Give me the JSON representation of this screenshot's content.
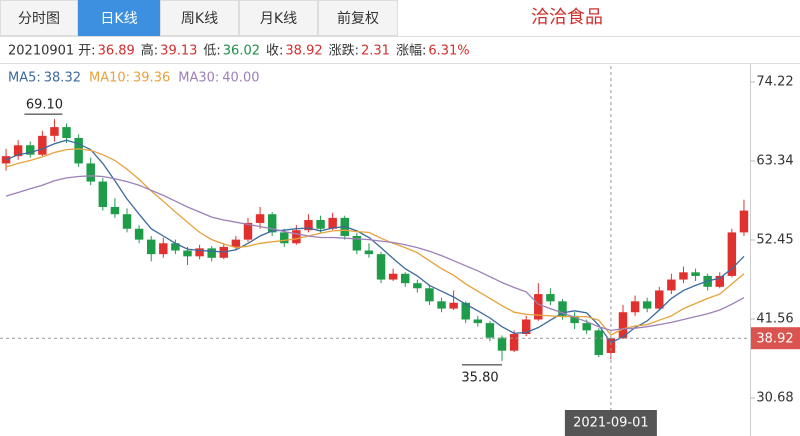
{
  "tabs": [
    "分时图",
    "日K线",
    "周K线",
    "月K线",
    "前复权"
  ],
  "active_tab": 1,
  "stock_name": "洽洽食品",
  "quote": {
    "date": "20210901",
    "items": [
      {
        "label": "开:",
        "value": 36.89,
        "color": "#d0302d"
      },
      {
        "label": "高:",
        "value": 39.13,
        "color": "#d0302d"
      },
      {
        "label": "低:",
        "value": 36.02,
        "color": "#1f8f4a"
      },
      {
        "label": "收:",
        "value": 38.92,
        "color": "#d0302d"
      },
      {
        "label": "涨跌:",
        "value": 2.31,
        "color": "#d0302d"
      },
      {
        "label": "涨幅:",
        "value": 6.31,
        "value_label": "6.31%",
        "color": "#d0302d"
      }
    ]
  },
  "chart_data": {
    "type": "candlestick",
    "up_color": "#e0312f",
    "down_color": "#1e9c4a",
    "categories": [
      null,
      null,
      null,
      null,
      null,
      null,
      null,
      null,
      null,
      null,
      null,
      null,
      null,
      null,
      null,
      null,
      null,
      null,
      null,
      null,
      null,
      null,
      null,
      null,
      null,
      null,
      null,
      null,
      null,
      null,
      null,
      null,
      null,
      null,
      null,
      null,
      null,
      null,
      null,
      null,
      null,
      null,
      null,
      null,
      null,
      null,
      null,
      null,
      null,
      null,
      "2021-09-01",
      null,
      null,
      null,
      null,
      null,
      null,
      null,
      null,
      null,
      null,
      null
    ],
    "ohlc": [
      [
        63.0,
        65.0,
        62.0,
        64.0
      ],
      [
        64.0,
        66.2,
        63.5,
        65.5
      ],
      [
        65.5,
        66.0,
        63.8,
        64.2
      ],
      [
        64.2,
        67.5,
        64.0,
        66.8
      ],
      [
        66.8,
        69.1,
        66.0,
        68.0
      ],
      [
        68.0,
        68.5,
        65.8,
        66.5
      ],
      [
        66.5,
        67.0,
        62.5,
        63.0
      ],
      [
        63.0,
        63.8,
        60.0,
        60.5
      ],
      [
        60.5,
        61.0,
        56.5,
        57.0
      ],
      [
        57.0,
        58.2,
        55.5,
        56.0
      ],
      [
        56.0,
        56.8,
        53.5,
        54.0
      ],
      [
        54.0,
        54.5,
        52.0,
        52.5
      ],
      [
        52.5,
        53.0,
        49.5,
        50.5
      ],
      [
        50.5,
        52.8,
        50.0,
        52.0
      ],
      [
        52.0,
        52.5,
        50.5,
        51.0
      ],
      [
        51.0,
        51.5,
        49.0,
        50.2
      ],
      [
        50.2,
        51.8,
        49.8,
        51.3
      ],
      [
        51.3,
        51.6,
        49.5,
        50.0
      ],
      [
        50.0,
        52.0,
        49.8,
        51.5
      ],
      [
        51.5,
        53.0,
        51.0,
        52.5
      ],
      [
        52.5,
        55.5,
        52.2,
        54.8
      ],
      [
        54.8,
        57.0,
        54.0,
        56.0
      ],
      [
        56.0,
        56.3,
        53.0,
        53.5
      ],
      [
        53.5,
        54.0,
        51.5,
        52.0
      ],
      [
        52.0,
        54.5,
        51.8,
        53.8
      ],
      [
        53.8,
        56.0,
        53.5,
        55.2
      ],
      [
        55.2,
        55.8,
        53.5,
        54.0
      ],
      [
        54.0,
        56.2,
        53.8,
        55.5
      ],
      [
        55.5,
        55.8,
        52.5,
        53.0
      ],
      [
        53.0,
        53.4,
        50.5,
        51.0
      ],
      [
        51.0,
        52.0,
        50.0,
        50.5
      ],
      [
        50.5,
        50.8,
        46.5,
        47.0
      ],
      [
        47.0,
        48.5,
        46.8,
        47.8
      ],
      [
        47.8,
        48.0,
        46.0,
        46.5
      ],
      [
        46.5,
        47.0,
        45.2,
        45.8
      ],
      [
        45.8,
        46.2,
        43.5,
        44.0
      ],
      [
        44.0,
        44.5,
        42.5,
        43.0
      ],
      [
        43.0,
        45.5,
        42.8,
        43.8
      ],
      [
        43.8,
        44.0,
        41.0,
        41.5
      ],
      [
        41.5,
        42.0,
        40.5,
        41.0
      ],
      [
        41.0,
        41.3,
        38.5,
        39.0
      ],
      [
        39.0,
        39.3,
        35.8,
        37.2
      ],
      [
        37.2,
        40.0,
        37.0,
        39.5
      ],
      [
        39.5,
        42.0,
        39.2,
        41.5
      ],
      [
        41.5,
        46.5,
        41.3,
        45.0
      ],
      [
        45.0,
        45.8,
        43.5,
        44.0
      ],
      [
        44.0,
        44.3,
        41.5,
        42.0
      ],
      [
        42.0,
        42.5,
        40.2,
        41.0
      ],
      [
        41.0,
        41.5,
        39.5,
        40.0
      ],
      [
        40.0,
        40.3,
        36.3,
        36.61
      ],
      [
        36.89,
        39.13,
        36.02,
        38.92
      ],
      [
        38.92,
        43.5,
        38.8,
        42.5
      ],
      [
        42.5,
        44.8,
        42.0,
        44.0
      ],
      [
        44.0,
        44.5,
        42.5,
        43.0
      ],
      [
        43.0,
        46.0,
        42.8,
        45.5
      ],
      [
        45.5,
        47.8,
        45.0,
        47.0
      ],
      [
        47.0,
        48.8,
        46.5,
        48.0
      ],
      [
        48.0,
        48.5,
        46.8,
        47.5
      ],
      [
        47.5,
        47.8,
        45.5,
        46.0
      ],
      [
        46.0,
        48.0,
        45.8,
        47.5
      ],
      [
        47.5,
        54.0,
        47.3,
        53.5
      ],
      [
        53.5,
        58.0,
        53.0,
        56.5
      ]
    ],
    "series": [
      {
        "name": "MA5:",
        "color": "#3d6a9e",
        "cursor_value": 38.32,
        "values": [
          63.5,
          64.2,
          64.5,
          65,
          65.7,
          66.2,
          65.7,
          64.9,
          63,
          60.6,
          58.1,
          56,
          54,
          53,
          52,
          51.2,
          51,
          50.9,
          50.8,
          51.1,
          52,
          53,
          53.7,
          53.8,
          54,
          54.1,
          53.7,
          54.1,
          54.3,
          53.7,
          52.8,
          51.4,
          49.9,
          48.5,
          47.5,
          46.2,
          45.4,
          44.6,
          43.6,
          42.7,
          41.7,
          40.5,
          39.6,
          39.7,
          40.4,
          41.4,
          42.4,
          42.7,
          42.4,
          40.7,
          38.32,
          39.1,
          40.4,
          41.3,
          42.8,
          44.4,
          45.5,
          46.2,
          46.8,
          47.2,
          48.5,
          50.2
        ]
      },
      {
        "name": "MA10:",
        "color": "#e6a23c",
        "cursor_value": 39.36,
        "values": [
          62.5,
          63,
          63.4,
          63.9,
          64.5,
          64.9,
          65,
          64.8,
          64.2,
          63.4,
          62.2,
          60.8,
          59.2,
          57.8,
          56.3,
          54.9,
          53.5,
          52.5,
          51.9,
          51.4,
          51.6,
          52,
          52.2,
          52.4,
          52.6,
          53,
          53.4,
          53.7,
          53.8,
          53.6,
          53.5,
          52.7,
          52,
          51.4,
          50.7,
          49.6,
          48.5,
          47.6,
          46.4,
          45.4,
          44.4,
          43.4,
          42.5,
          42.2,
          42.1,
          42,
          41.9,
          41.9,
          41.9,
          41.4,
          39.36,
          40.2,
          40.6,
          40.8,
          41.4,
          42,
          43,
          43.7,
          44.4,
          45,
          46.4,
          47.8
        ]
      },
      {
        "name": "MA30:",
        "color": "#9d80b8",
        "cursor_value": {
          "value": 40,
          "label": "40.00"
        },
        "values": [
          58.5,
          59,
          59.5,
          60,
          60.6,
          61,
          61.2,
          61.3,
          61.2,
          60.9,
          60.5,
          60,
          59.3,
          58.6,
          57.8,
          57,
          56.3,
          55.6,
          55.2,
          54.9,
          54.6,
          54.3,
          54,
          53.6,
          53.3,
          53,
          52.8,
          52.8,
          52.7,
          52.6,
          52.5,
          52.3,
          52.1,
          51.8,
          51.4,
          50.9,
          50.3,
          49.6,
          48.9,
          48.2,
          47.4,
          46.6,
          45.9,
          45.3,
          43.6,
          43,
          42.4,
          41.8,
          41.2,
          40.5,
          40,
          40.2,
          40.3,
          40.5,
          40.8,
          41.1,
          41.5,
          41.9,
          42.3,
          42.8,
          43.6,
          44.5
        ]
      }
    ],
    "cursor_price": 38.92,
    "annotations": [
      {
        "value": 69.1,
        "label": "69.10",
        "kind": "high"
      },
      {
        "value": 35.8,
        "label": "35.80",
        "kind": "low"
      }
    ],
    "ylim": [
      29.03,
      76.42
    ],
    "yticks": [
      74.22,
      63.34,
      52.45,
      41.56,
      30.68
    ]
  }
}
